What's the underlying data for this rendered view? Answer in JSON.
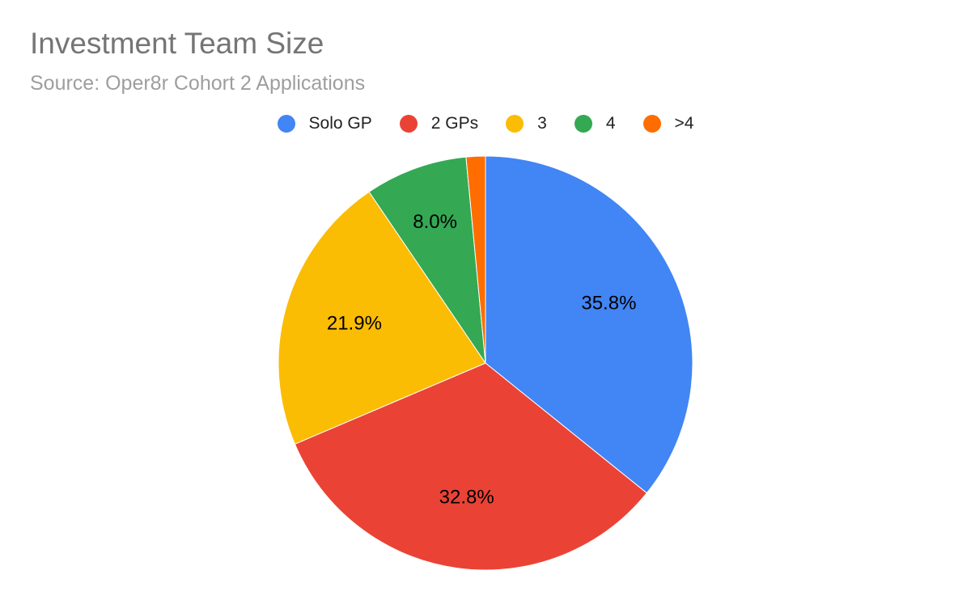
{
  "chart_data": {
    "type": "pie",
    "title": "Investment Team Size",
    "subtitle": "Source: Oper8r Cohort 2 Applications",
    "legend_position": "top",
    "categories": [
      "Solo GP",
      "2 GPs",
      "3",
      "4",
      ">4"
    ],
    "values": [
      35.8,
      32.8,
      21.9,
      8.0,
      1.5
    ],
    "labels": [
      "35.8%",
      "32.8%",
      "21.9%",
      "8.0%",
      ""
    ],
    "colors": [
      "#4285f4",
      "#ea4335",
      "#fbbc04",
      "#34a853",
      "#ff6d01"
    ]
  }
}
